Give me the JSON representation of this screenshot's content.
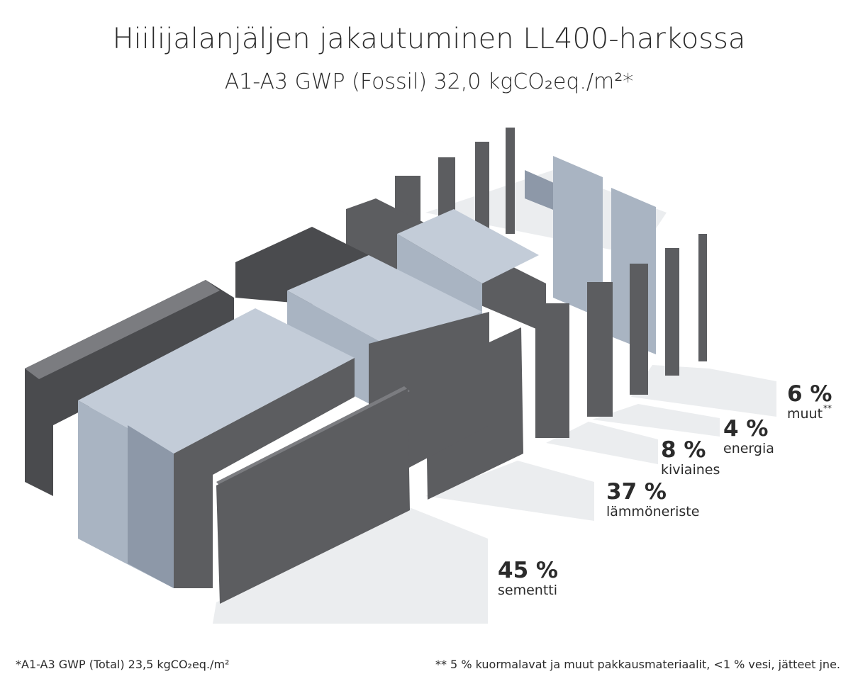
{
  "title": "Hiilijalanjäljen jakautuminen LL400-harkossa",
  "subtitle": "A1-A3 GWP (Fossil) 32,0 kgCO₂eq./m²*",
  "segments": [
    {
      "percent": "45 %",
      "name": "sementti"
    },
    {
      "percent": "37 %",
      "name": "lämmöneriste"
    },
    {
      "percent": "8 %",
      "name": "kiviaines"
    },
    {
      "percent": "4 %",
      "name": "energia"
    },
    {
      "percent": "6 %",
      "name": "muut",
      "note": "**"
    }
  ],
  "footnotes": [
    "*A1-A3 GWP (Total) 23,5 kgCO₂eq./m²",
    "** 5 % kuormalavat ja muut pakkausmateriaalit, <1 % vesi, jätteet jne."
  ]
}
